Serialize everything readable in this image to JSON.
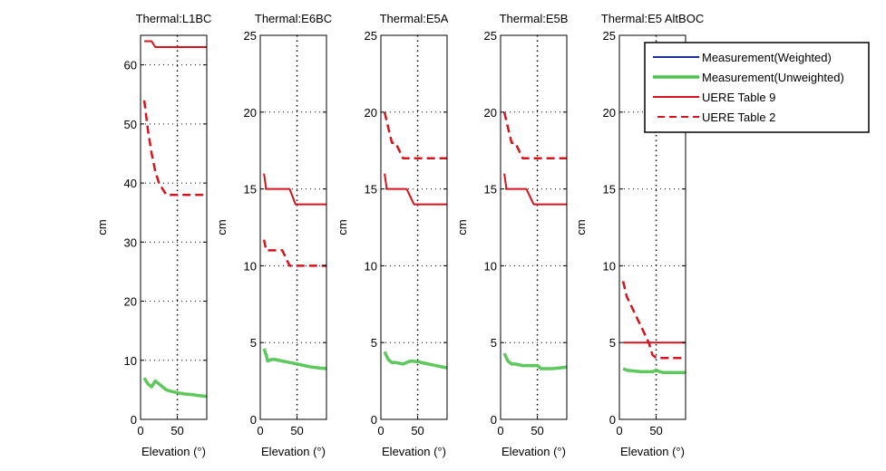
{
  "chart_data": [
    {
      "type": "line",
      "title": "Thermal:L1BC",
      "xlabel": "Elevation (°)",
      "ylabel": "cm",
      "xlim": [
        0,
        90
      ],
      "ylim": [
        0,
        65
      ],
      "xticks": [
        0,
        50
      ],
      "yticks": [
        0,
        10,
        20,
        30,
        40,
        50,
        60
      ],
      "grid": true,
      "series": [
        {
          "name": "Measurement(Unweighted)",
          "x": [
            5,
            10,
            15,
            20,
            25,
            30,
            35,
            40,
            50,
            60,
            70,
            80,
            90
          ],
          "y": [
            7.0,
            6.0,
            5.5,
            6.5,
            6.0,
            5.5,
            5.0,
            4.8,
            4.5,
            4.3,
            4.2,
            4.0,
            3.9
          ]
        },
        {
          "name": "UERE Table 9",
          "x": [
            5,
            15,
            20,
            90
          ],
          "y": [
            64,
            64,
            63,
            63
          ]
        },
        {
          "name": "UERE Table 2",
          "x": [
            5,
            10,
            15,
            20,
            25,
            30,
            35,
            90
          ],
          "y": [
            54,
            49,
            45,
            42,
            40,
            39,
            38,
            38
          ]
        }
      ]
    },
    {
      "type": "line",
      "title": "Thermal:E6BC",
      "xlabel": "Elevation (°)",
      "ylabel": "cm",
      "xlim": [
        0,
        90
      ],
      "ylim": [
        0,
        25
      ],
      "xticks": [
        0,
        50
      ],
      "yticks": [
        0,
        5,
        10,
        15,
        20,
        25
      ],
      "grid": true,
      "series": [
        {
          "name": "Measurement(Unweighted)",
          "x": [
            5,
            8,
            10,
            15,
            20,
            30,
            40,
            50,
            60,
            70,
            80,
            90
          ],
          "y": [
            4.6,
            4.2,
            3.8,
            3.9,
            3.9,
            3.8,
            3.7,
            3.6,
            3.5,
            3.4,
            3.35,
            3.3
          ]
        },
        {
          "name": "UERE Table 9",
          "x": [
            5,
            8,
            40,
            48,
            90
          ],
          "y": [
            16,
            15,
            15,
            14,
            14
          ]
        },
        {
          "name": "UERE Table 2",
          "x": [
            5,
            8,
            30,
            40,
            90
          ],
          "y": [
            11.7,
            11,
            11,
            10,
            10
          ]
        }
      ]
    },
    {
      "type": "line",
      "title": "Thermal:E5A",
      "xlabel": "Elevation (°)",
      "ylabel": "cm",
      "xlim": [
        0,
        90
      ],
      "ylim": [
        0,
        25
      ],
      "xticks": [
        0,
        50
      ],
      "yticks": [
        0,
        5,
        10,
        15,
        20,
        25
      ],
      "grid": true,
      "series": [
        {
          "name": "Measurement(Unweighted)",
          "x": [
            5,
            10,
            15,
            20,
            30,
            40,
            50,
            60,
            70,
            80,
            90
          ],
          "y": [
            4.4,
            3.9,
            3.7,
            3.7,
            3.6,
            3.8,
            3.75,
            3.65,
            3.55,
            3.45,
            3.35
          ]
        },
        {
          "name": "UERE Table 9",
          "x": [
            5,
            8,
            35,
            45,
            90
          ],
          "y": [
            16,
            15,
            15,
            14,
            14
          ]
        },
        {
          "name": "UERE Table 2",
          "x": [
            5,
            10,
            15,
            20,
            25,
            30,
            35,
            90
          ],
          "y": [
            20,
            19,
            18,
            18,
            17.5,
            17,
            17,
            17
          ]
        }
      ]
    },
    {
      "type": "line",
      "title": "Thermal:E5B",
      "xlabel": "Elevation (°)",
      "ylabel": "cm",
      "xlim": [
        0,
        90
      ],
      "ylim": [
        0,
        25
      ],
      "xticks": [
        0,
        50
      ],
      "yticks": [
        0,
        5,
        10,
        15,
        20,
        25
      ],
      "grid": true,
      "series": [
        {
          "name": "Measurement(Unweighted)",
          "x": [
            5,
            10,
            15,
            20,
            30,
            40,
            50,
            55,
            60,
            70,
            80,
            90
          ],
          "y": [
            4.3,
            3.8,
            3.6,
            3.6,
            3.5,
            3.5,
            3.5,
            3.3,
            3.3,
            3.3,
            3.35,
            3.4
          ]
        },
        {
          "name": "UERE Table 9",
          "x": [
            5,
            8,
            35,
            45,
            90
          ],
          "y": [
            16,
            15,
            15,
            14,
            14
          ]
        },
        {
          "name": "UERE Table 2",
          "x": [
            5,
            10,
            15,
            20,
            25,
            30,
            35,
            90
          ],
          "y": [
            20,
            19,
            18,
            18,
            17.5,
            17,
            17,
            17
          ]
        }
      ]
    },
    {
      "type": "line",
      "title": "Thermal:E5 AltBOC",
      "xlabel": "Elevation (°)",
      "ylabel": "cm",
      "xlim": [
        0,
        90
      ],
      "ylim": [
        0,
        25
      ],
      "xticks": [
        0,
        50
      ],
      "yticks": [
        0,
        5,
        10,
        15,
        20,
        25
      ],
      "grid": true,
      "series": [
        {
          "name": "Measurement(Unweighted)",
          "x": [
            5,
            10,
            20,
            30,
            40,
            45,
            50,
            55,
            60,
            70,
            80,
            90
          ],
          "y": [
            3.3,
            3.2,
            3.15,
            3.1,
            3.1,
            3.1,
            3.2,
            3.1,
            3.05,
            3.05,
            3.05,
            3.05
          ]
        },
        {
          "name": "UERE Table 9",
          "x": [
            5,
            90
          ],
          "y": [
            5,
            5
          ]
        },
        {
          "name": "UERE Table 2",
          "x": [
            5,
            10,
            20,
            30,
            40,
            45,
            50,
            90
          ],
          "y": [
            9,
            8,
            7,
            6,
            5,
            4.2,
            4,
            4
          ]
        }
      ]
    }
  ],
  "legend": {
    "placement": "top-right",
    "entries": [
      {
        "label": "Measurement(Weighted)",
        "color": "#1f2f9a",
        "style": "solid"
      },
      {
        "label": "Measurement(Unweighted)",
        "color": "#4cc24c",
        "style": "solid-thick"
      },
      {
        "label": "UERE Table 9",
        "color": "#d4141e",
        "style": "solid"
      },
      {
        "label": "UERE Table 2",
        "color": "#d4141e",
        "style": "dashed"
      }
    ]
  },
  "colors": {
    "weighted": "#1f2f9a",
    "unweighted": "#4cc24c",
    "uere9": "#d4141e",
    "uere2": "#d4141e",
    "axis": "#000000"
  }
}
